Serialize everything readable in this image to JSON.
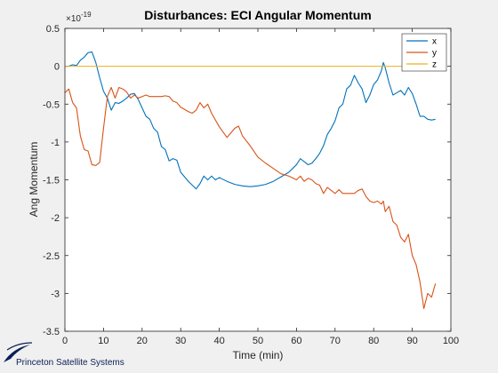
{
  "brand": {
    "name": "Princeton Satellite Systems"
  },
  "colors": {
    "x": "#0072BD",
    "y": "#D95319",
    "z": "#EDB120",
    "brand": "#0b1f57"
  },
  "chart_data": {
    "type": "line",
    "title": "Disturbances: ECI Angular Momentum",
    "xlabel": "Time (min)",
    "ylabel": "Ang Momentum",
    "xlim": [
      0,
      100
    ],
    "ylim": [
      -3.5,
      0.5
    ],
    "y_exponent_label": "×10",
    "y_exponent_power": "-19",
    "x_ticks": [
      0,
      10,
      20,
      30,
      40,
      50,
      60,
      70,
      80,
      90,
      100
    ],
    "x_tick_labels": [
      "0",
      "10",
      "20",
      "30",
      "40",
      "50",
      "60",
      "70",
      "80",
      "90",
      "100"
    ],
    "y_ticks": [
      0.5,
      0,
      -0.5,
      -1,
      -1.5,
      -2,
      -2.5,
      -3,
      -3.5
    ],
    "y_tick_labels": [
      "0.5",
      "0",
      "-0.5",
      "-1",
      "-1.5",
      "-2",
      "-2.5",
      "-3",
      "-3.5"
    ],
    "grid": false,
    "box": true,
    "legend_position": "top-right",
    "series": [
      {
        "name": "x",
        "color": "#0072BD",
        "x": [
          0,
          1,
          2,
          3,
          4,
          5,
          6,
          7,
          8,
          9,
          10,
          11,
          12,
          13,
          14,
          15,
          16,
          17,
          18,
          19,
          20,
          21,
          22,
          23,
          24,
          25,
          26,
          27,
          28,
          29,
          30,
          32,
          34,
          35,
          36,
          37,
          38,
          39,
          40,
          42,
          44,
          46,
          48,
          50,
          52,
          54,
          56,
          58,
          60,
          61,
          62,
          63,
          64,
          65,
          66,
          67,
          68,
          69,
          70,
          71,
          72,
          73,
          74,
          75,
          76,
          77,
          78,
          79,
          80,
          81,
          82,
          82.5,
          83,
          84,
          85,
          86,
          87,
          88,
          89,
          90,
          91,
          92,
          93,
          94,
          95,
          96
        ],
        "values": [
          0,
          0,
          0.02,
          0.01,
          0.08,
          0.12,
          0.18,
          0.19,
          0.05,
          -0.15,
          -0.33,
          -0.42,
          -0.58,
          -0.48,
          -0.49,
          -0.46,
          -0.42,
          -0.37,
          -0.36,
          -0.44,
          -0.55,
          -0.66,
          -0.7,
          -0.82,
          -0.87,
          -1.06,
          -1.1,
          -1.25,
          -1.22,
          -1.24,
          -1.4,
          -1.52,
          -1.62,
          -1.55,
          -1.45,
          -1.5,
          -1.45,
          -1.5,
          -1.47,
          -1.52,
          -1.56,
          -1.58,
          -1.59,
          -1.58,
          -1.56,
          -1.52,
          -1.46,
          -1.4,
          -1.3,
          -1.22,
          -1.26,
          -1.3,
          -1.28,
          -1.22,
          -1.15,
          -1.05,
          -0.9,
          -0.82,
          -0.72,
          -0.55,
          -0.5,
          -0.3,
          -0.25,
          -0.12,
          -0.22,
          -0.3,
          -0.48,
          -0.38,
          -0.24,
          -0.18,
          -0.06,
          0.05,
          -0.02,
          -0.22,
          -0.38,
          -0.35,
          -0.32,
          -0.38,
          -0.28,
          -0.36,
          -0.5,
          -0.66,
          -0.66,
          -0.7,
          -0.71,
          -0.7
        ]
      },
      {
        "name": "y",
        "color": "#D95319",
        "x": [
          0,
          1,
          2,
          3,
          4,
          5,
          6,
          7,
          8,
          9,
          10,
          11,
          12,
          13,
          14,
          15,
          16,
          17,
          18,
          19,
          20,
          21,
          22,
          23,
          24,
          25,
          26,
          27,
          28,
          29,
          30,
          32,
          33,
          34,
          35,
          36,
          37,
          38,
          40,
          42,
          44,
          45,
          46,
          48,
          50,
          52,
          54,
          56,
          58,
          60,
          61,
          62,
          63,
          64,
          65,
          66,
          67,
          68,
          69,
          70,
          71,
          72,
          73,
          74,
          75,
          76,
          77,
          78,
          79,
          80,
          81,
          82,
          82.5,
          83,
          84,
          85,
          86,
          87,
          88,
          89,
          90,
          91,
          92,
          93,
          94,
          95,
          96
        ],
        "values": [
          -0.35,
          -0.3,
          -0.48,
          -0.55,
          -0.92,
          -1.1,
          -1.12,
          -1.3,
          -1.31,
          -1.27,
          -0.82,
          -0.4,
          -0.28,
          -0.42,
          -0.28,
          -0.3,
          -0.34,
          -0.42,
          -0.38,
          -0.42,
          -0.4,
          -0.38,
          -0.4,
          -0.4,
          -0.4,
          -0.4,
          -0.39,
          -0.4,
          -0.46,
          -0.48,
          -0.54,
          -0.6,
          -0.62,
          -0.58,
          -0.48,
          -0.55,
          -0.5,
          -0.62,
          -0.8,
          -0.94,
          -0.82,
          -0.79,
          -0.92,
          -1.05,
          -1.2,
          -1.28,
          -1.35,
          -1.42,
          -1.45,
          -1.5,
          -1.45,
          -1.52,
          -1.48,
          -1.5,
          -1.55,
          -1.57,
          -1.68,
          -1.6,
          -1.64,
          -1.68,
          -1.63,
          -1.68,
          -1.68,
          -1.68,
          -1.68,
          -1.64,
          -1.62,
          -1.72,
          -1.78,
          -1.8,
          -1.78,
          -1.82,
          -1.78,
          -1.92,
          -1.85,
          -2.05,
          -2.1,
          -2.26,
          -2.32,
          -2.22,
          -2.5,
          -2.62,
          -2.85,
          -3.2,
          -3.0,
          -3.05,
          -2.87
        ]
      },
      {
        "name": "z",
        "color": "#EDB120",
        "x": [
          0,
          96
        ],
        "values": [
          0,
          0
        ]
      }
    ]
  }
}
